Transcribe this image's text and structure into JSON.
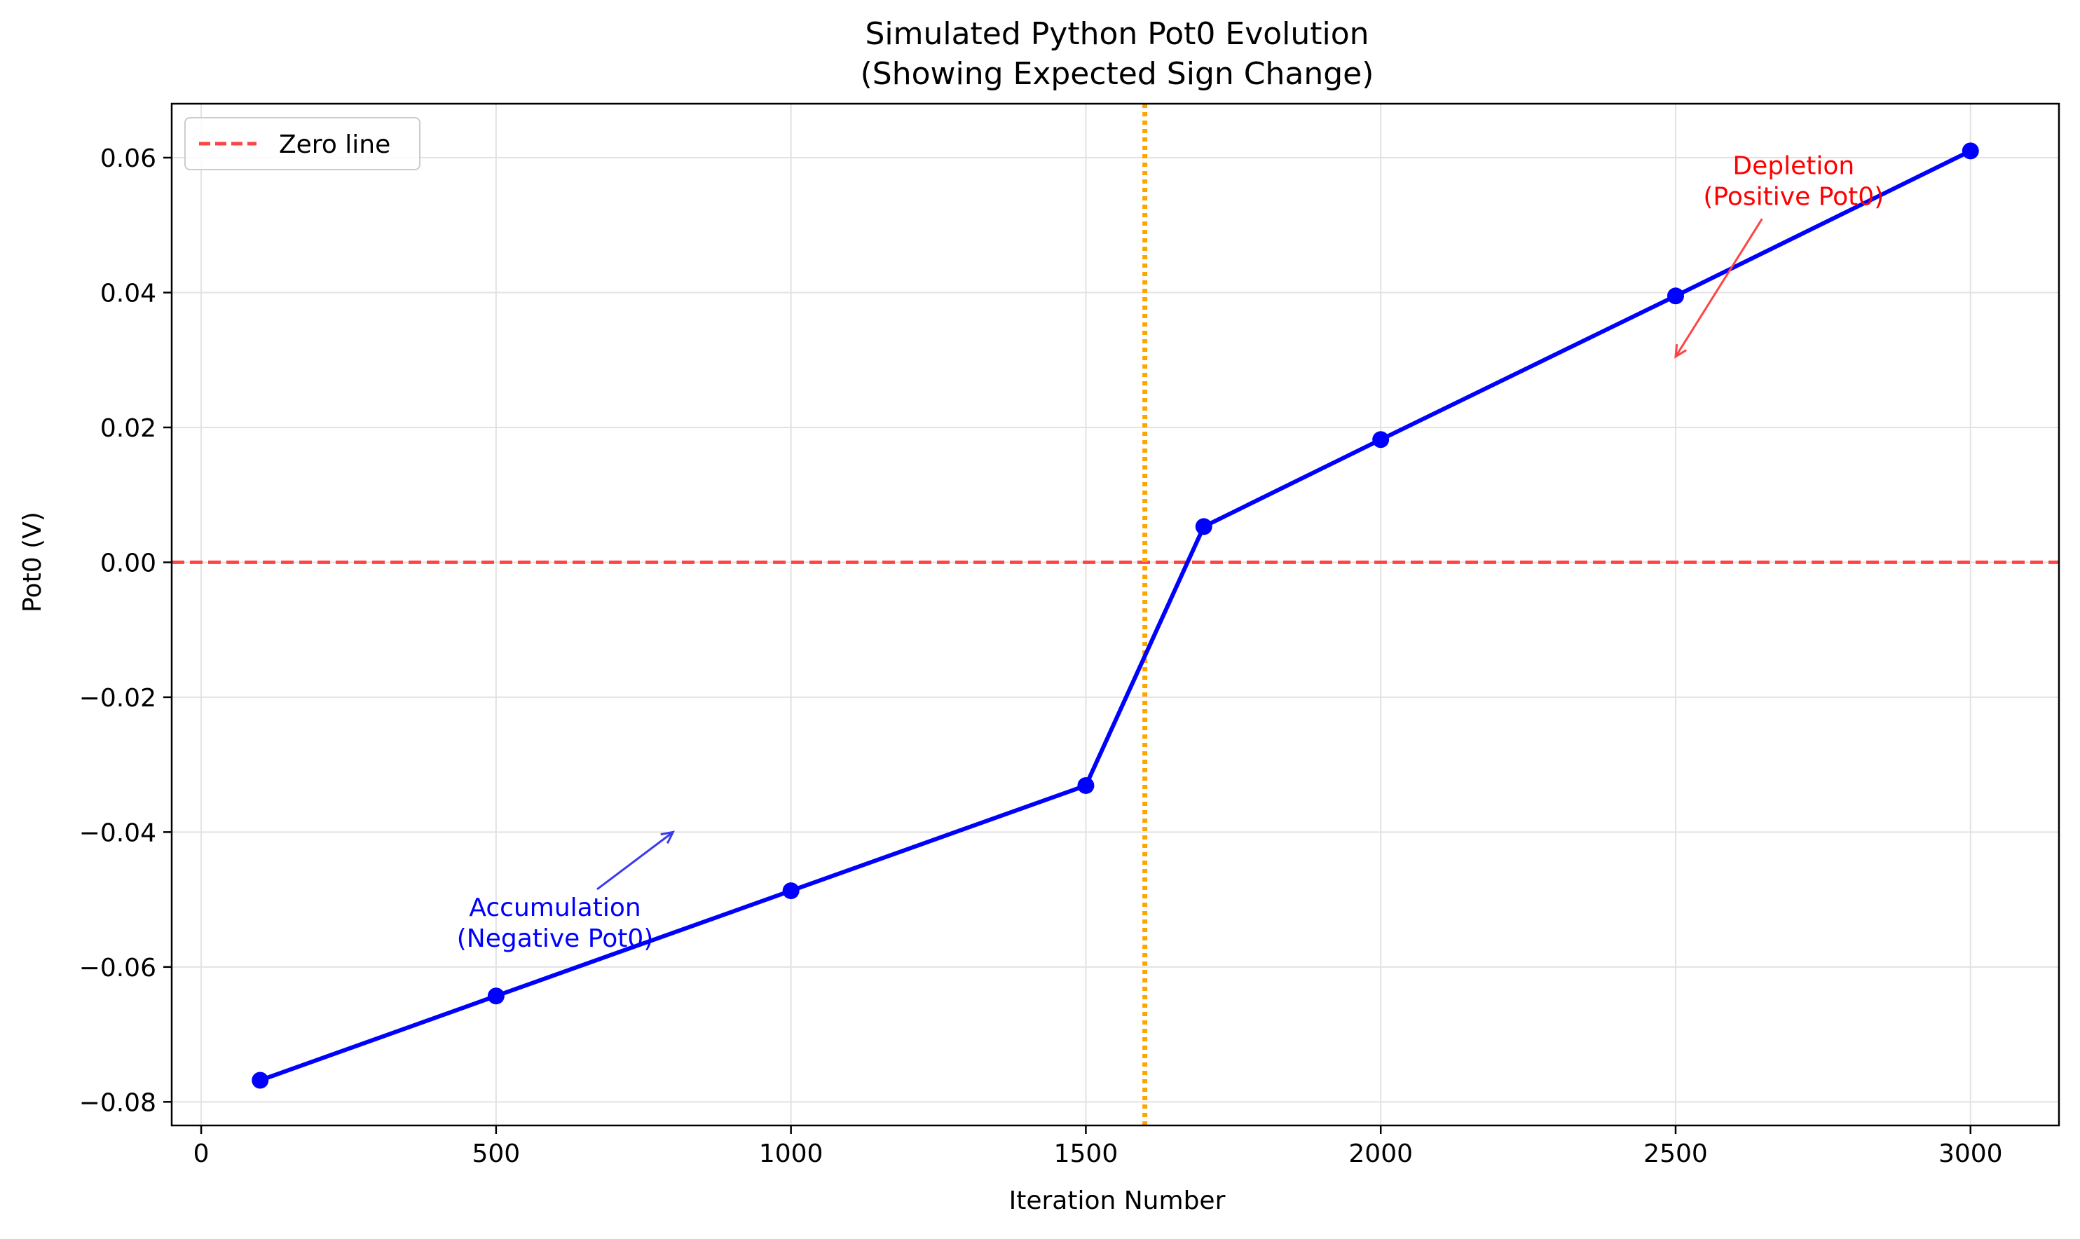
{
  "chart_data": {
    "type": "line",
    "title": "Simulated Python Pot0 Evolution",
    "subtitle": "(Showing Expected Sign Change)",
    "xlabel": "Iteration Number",
    "ylabel": "Pot0 (V)",
    "xlim": [
      -50,
      3150
    ],
    "ylim": [
      -0.0835,
      0.068
    ],
    "xticks": [
      0,
      500,
      1000,
      1500,
      2000,
      2500,
      3000
    ],
    "xtick_labels": [
      "0",
      "500",
      "1000",
      "1500",
      "2000",
      "2500",
      "3000"
    ],
    "yticks": [
      -0.08,
      -0.06,
      -0.04,
      -0.02,
      0.0,
      0.02,
      0.04,
      0.06
    ],
    "ytick_labels": [
      "−0.08",
      "−0.06",
      "−0.04",
      "−0.02",
      "0.00",
      "0.02",
      "0.04",
      "0.06"
    ],
    "grid": true,
    "legend": {
      "position": "upper-left",
      "entries": [
        "Zero line"
      ]
    },
    "series": [
      {
        "color": "#0000ff",
        "marker": "circle",
        "x": [
          100,
          500,
          1000,
          1500,
          1700,
          2000,
          2500,
          3000
        ],
        "y": [
          -0.0768,
          -0.0643,
          -0.0487,
          -0.0331,
          0.0053,
          0.0182,
          0.0395,
          0.061
        ]
      }
    ],
    "reference_lines": [
      {
        "orientation": "horizontal",
        "value": 0.0,
        "style": "dashed",
        "color": "#ff4444",
        "label": "Zero line"
      },
      {
        "orientation": "vertical",
        "value": 1600,
        "style": "dotted",
        "color": "#ffa500"
      }
    ],
    "annotations": [
      {
        "text": [
          "Accumulation",
          "(Negative Pot0)"
        ],
        "color": "#0000ff",
        "text_x": 600,
        "text_y": -0.057,
        "arrow_to_x": 800,
        "arrow_to_y": -0.04,
        "arrow_color": "#3a3af0"
      },
      {
        "text": [
          "Depletion",
          "(Positive Pot0)"
        ],
        "color": "#ff0000",
        "text_x": 2700,
        "text_y": 0.053,
        "arrow_to_x": 2500,
        "arrow_to_y": 0.0305,
        "arrow_color": "#ff4444"
      }
    ]
  }
}
